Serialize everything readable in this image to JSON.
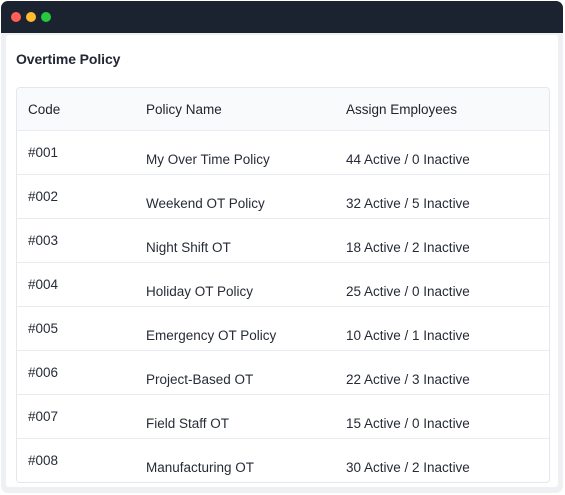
{
  "window": {
    "controls": {
      "close_color": "#ff5f57",
      "minimize_color": "#febc2e",
      "maximize_color": "#28c840"
    }
  },
  "page": {
    "title": "Overtime Policy"
  },
  "table": {
    "columns": [
      "Code",
      "Policy Name",
      "Assign Employees"
    ],
    "rows": [
      {
        "code": "#001",
        "name": "My Over Time Policy",
        "assign": "44 Active / 0 Inactive"
      },
      {
        "code": "#002",
        "name": "Weekend OT Policy",
        "assign": "32 Active / 5 Inactive"
      },
      {
        "code": "#003",
        "name": "Night Shift OT",
        "assign": "18 Active / 2 Inactive"
      },
      {
        "code": "#004",
        "name": "Holiday OT Policy",
        "assign": "25 Active / 0 Inactive"
      },
      {
        "code": "#005",
        "name": "Emergency OT Policy",
        "assign": "10 Active / 1 Inactive"
      },
      {
        "code": "#006",
        "name": "Project-Based OT",
        "assign": "22 Active / 3 Inactive"
      },
      {
        "code": "#007",
        "name": "Field Staff OT",
        "assign": "15 Active / 0 Inactive"
      },
      {
        "code": "#008",
        "name": "Manufacturing OT",
        "assign": "30 Active / 2 Inactive"
      }
    ]
  }
}
